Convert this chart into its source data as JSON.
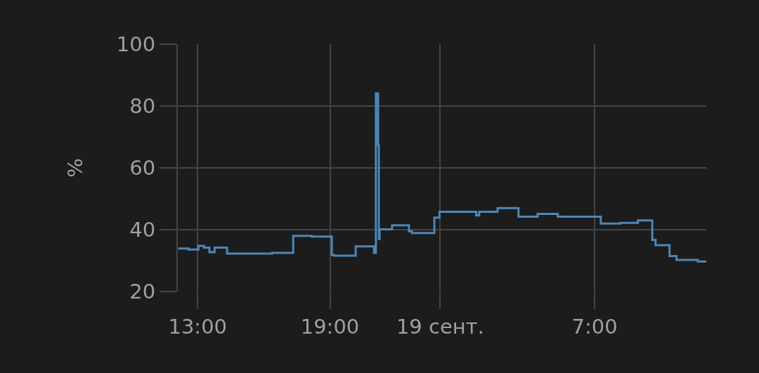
{
  "chart_data": {
    "type": "step",
    "ylabel": "%",
    "x": [
      "--09-18T12:07",
      "--09-18T12:35",
      "--09-18T13:02",
      "--09-18T13:17",
      "--09-18T13:32",
      "--09-18T13:46",
      "--09-18T14:20",
      "--09-18T16:23",
      "--09-18T17:20",
      "--09-18T18:10",
      "--09-18T19:05",
      "--09-18T19:11",
      "--09-18T20:10",
      "--09-18T21:00",
      "--09-18T21:05",
      "--09-18T21:11",
      "--09-18T21:13",
      "--09-18T21:15",
      "--09-18T21:49",
      "--09-18T22:35",
      "--09-18T22:43",
      "--09-18T23:44",
      "--09-18T23:58",
      "--09-19T01:38",
      "--09-19T01:46",
      "--09-19T02:36",
      "--09-19T03:33",
      "--09-19T04:25",
      "--09-19T05:20",
      "--09-19T07:17",
      "--09-19T08:10",
      "--09-19T08:58",
      "--09-19T09:37",
      "--09-19T09:46",
      "--09-19T10:24",
      "--09-19T10:43",
      "--09-19T11:41",
      "--09-19T12:04"
    ],
    "series": [
      {
        "color": "#4e86b8",
        "values": [
          33.9,
          33.6,
          34.8,
          34.2,
          32.7,
          34.2,
          32.3,
          32.5,
          38.0,
          37.8,
          31.8,
          31.6,
          34.6,
          32.5,
          84.1,
          67.3,
          37.0,
          40.1,
          41.4,
          39.5,
          38.9,
          43.9,
          45.8,
          44.6,
          45.8,
          47.0,
          44.2,
          45.1,
          44.2,
          42.0,
          42.2,
          43.0,
          36.7,
          35.0,
          31.5,
          30.2,
          29.7,
          29.7
        ]
      }
    ],
    "xlim": [
      "--09-18T12:06",
      "--09-19T12:04"
    ],
    "xticks": [
      {
        "value": "--09-18T13:00",
        "label": "13:00"
      },
      {
        "value": "--09-18T19:00",
        "label": "19:00"
      },
      {
        "value": "--09-19T00:00",
        "label": "19 сент."
      },
      {
        "value": "--09-19T07:00",
        "label": "7:00"
      }
    ],
    "ylim": [
      20,
      100
    ],
    "yticks": [
      20,
      40,
      60,
      80,
      100
    ],
    "grid": true,
    "marker": "none",
    "line_style": "solid"
  }
}
